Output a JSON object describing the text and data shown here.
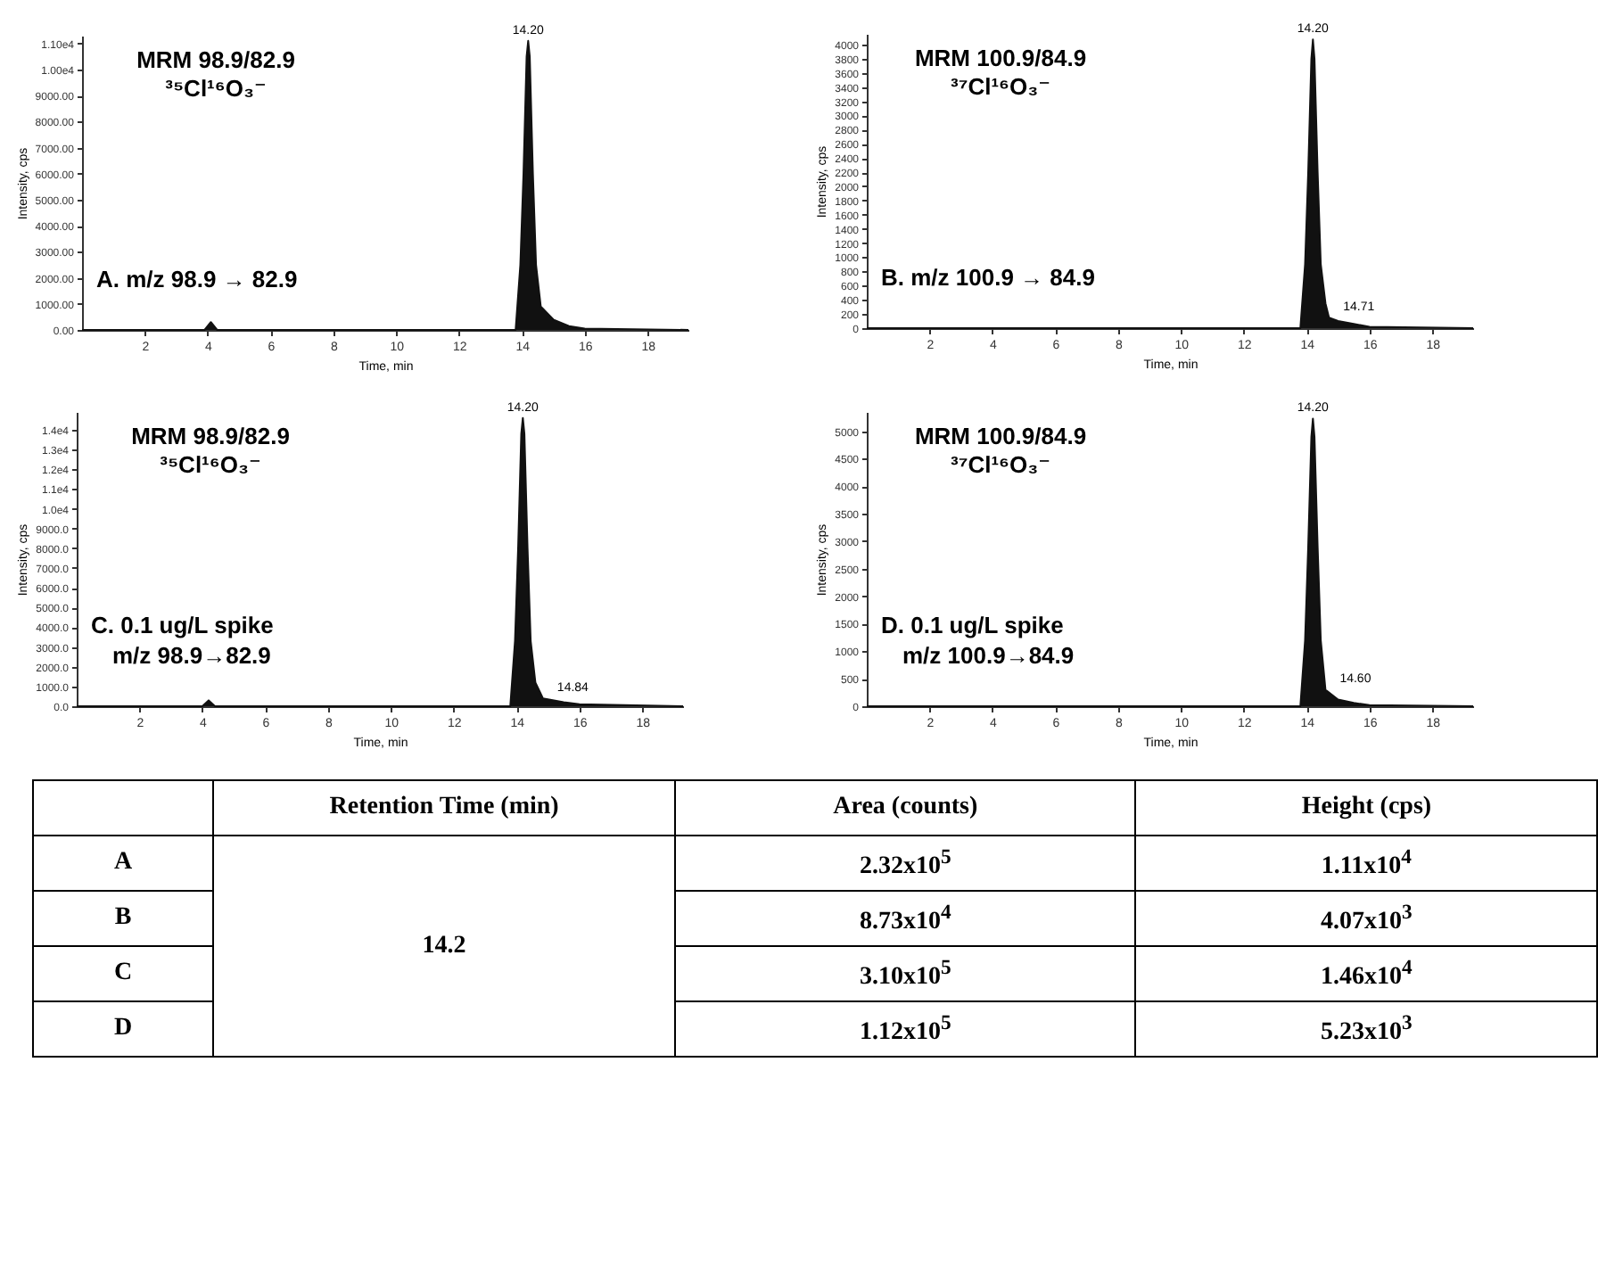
{
  "chart_data": [
    {
      "type": "area",
      "xlabel": "Time, min",
      "ylabel": "Intensity, cps",
      "color": "#111111",
      "xlim": [
        0,
        19.3
      ],
      "xticks": [
        2,
        4,
        6,
        8,
        10,
        12,
        14,
        16,
        18
      ],
      "ylim": [
        0,
        11300
      ],
      "yticks": [
        {
          "value": 0,
          "label": "0.00"
        },
        {
          "value": 1000,
          "label": "1000.00"
        },
        {
          "value": 2000,
          "label": "2000.00"
        },
        {
          "value": 3000,
          "label": "3000.00"
        },
        {
          "value": 4000,
          "label": "4000.00"
        },
        {
          "value": 5000,
          "label": "5000.00"
        },
        {
          "value": 6000,
          "label": "6000.00"
        },
        {
          "value": 7000,
          "label": "7000.00"
        },
        {
          "value": 8000,
          "label": "8000.00"
        },
        {
          "value": 9000,
          "label": "9000.00"
        },
        {
          "value": 10000,
          "label": "1.00e4"
        },
        {
          "value": 11000,
          "label": "1.10e4"
        }
      ],
      "x": [
        0,
        3.9,
        4.1,
        4.3,
        13.8,
        13.95,
        14.05,
        14.15,
        14.2,
        14.25,
        14.35,
        14.45,
        14.6,
        15,
        15.5,
        16,
        19.3
      ],
      "values": [
        0,
        0,
        300,
        0,
        0,
        2500,
        6000,
        10500,
        11100,
        10500,
        6000,
        2500,
        900,
        400,
        150,
        50,
        0
      ],
      "annotations": [
        "MRM 98.9/82.9",
        "³⁵Cl¹⁶O₃⁻",
        "A. m/z 98.9 → 82.9",
        {
          "text": "14.20",
          "x": 14.2,
          "y": 11100
        }
      ]
    },
    {
      "type": "area",
      "xlabel": "Time, min",
      "ylabel": "Intensity, cps",
      "color": "#111111",
      "xlim": [
        0,
        19.3
      ],
      "xticks": [
        2,
        4,
        6,
        8,
        10,
        12,
        14,
        16,
        18
      ],
      "ylim": [
        0,
        4150
      ],
      "yticks": [
        0,
        200,
        400,
        600,
        800,
        1000,
        1200,
        1400,
        1600,
        1800,
        2000,
        2200,
        2400,
        2600,
        2800,
        3000,
        3200,
        3400,
        3600,
        3800,
        4000
      ],
      "x": [
        0,
        13.8,
        13.95,
        14.05,
        14.15,
        14.2,
        14.25,
        14.35,
        14.45,
        14.6,
        14.71,
        15,
        15.5,
        16,
        19.3
      ],
      "values": [
        0,
        0,
        900,
        2200,
        3800,
        4070,
        3800,
        2200,
        900,
        350,
        150,
        100,
        60,
        20,
        0
      ],
      "annotations": [
        "MRM 100.9/84.9",
        "³⁷Cl¹⁶O₃⁻",
        "B. m/z 100.9 → 84.9",
        {
          "text": "14.20",
          "x": 14.2,
          "y": 4070
        },
        {
          "text": "14.71",
          "x": 14.71,
          "y": 150
        }
      ]
    },
    {
      "type": "area",
      "xlabel": "Time, min",
      "ylabel": "Intensity, cps",
      "color": "#111111",
      "xlim": [
        0,
        19.3
      ],
      "xticks": [
        2,
        4,
        6,
        8,
        10,
        12,
        14,
        16,
        18
      ],
      "ylim": [
        0,
        14900
      ],
      "yticks": [
        {
          "value": 0,
          "label": "0.0"
        },
        {
          "value": 1000,
          "label": "1000.0"
        },
        {
          "value": 2000,
          "label": "2000.0"
        },
        {
          "value": 3000,
          "label": "3000.0"
        },
        {
          "value": 4000,
          "label": "4000.0"
        },
        {
          "value": 5000,
          "label": "5000.0"
        },
        {
          "value": 6000,
          "label": "6000.0"
        },
        {
          "value": 7000,
          "label": "7000.0"
        },
        {
          "value": 8000,
          "label": "8000.0"
        },
        {
          "value": 9000,
          "label": "9000.0"
        },
        {
          "value": 10000,
          "label": "1.0e4"
        },
        {
          "value": 11000,
          "label": "1.1e4"
        },
        {
          "value": 12000,
          "label": "1.2e4"
        },
        {
          "value": 13000,
          "label": "1.3e4"
        },
        {
          "value": 14000,
          "label": "1.4e4"
        }
      ],
      "x": [
        0,
        4.0,
        4.2,
        4.4,
        13.8,
        13.95,
        14.05,
        14.15,
        14.2,
        14.25,
        14.35,
        14.45,
        14.6,
        14.84,
        15.5,
        16,
        19.3
      ],
      "values": [
        0,
        0,
        300,
        0,
        0,
        3300,
        8000,
        13800,
        14600,
        13800,
        8000,
        3300,
        1200,
        400,
        200,
        100,
        0
      ],
      "annotations": [
        "MRM 98.9/82.9",
        "³⁵Cl¹⁶O₃⁻",
        "C. 0.1 ug/L spike",
        "m/z 98.9→82.9",
        {
          "text": "14.20",
          "x": 14.2,
          "y": 14600
        },
        {
          "text": "14.84",
          "x": 14.84,
          "y": 400
        }
      ]
    },
    {
      "type": "area",
      "xlabel": "Time, min",
      "ylabel": "Intensity, cps",
      "color": "#111111",
      "xlim": [
        0,
        19.3
      ],
      "xticks": [
        2,
        4,
        6,
        8,
        10,
        12,
        14,
        16,
        18
      ],
      "ylim": [
        0,
        5350
      ],
      "yticks": [
        0,
        500,
        1000,
        1500,
        2000,
        2500,
        3000,
        3500,
        4000,
        4500,
        5000
      ],
      "x": [
        0,
        13.8,
        13.95,
        14.05,
        14.15,
        14.2,
        14.25,
        14.35,
        14.45,
        14.6,
        15,
        15.5,
        16,
        19.3
      ],
      "values": [
        0,
        0,
        1200,
        2900,
        4900,
        5230,
        4900,
        2900,
        1200,
        300,
        120,
        60,
        20,
        0
      ],
      "annotations": [
        "MRM 100.9/84.9",
        "³⁷Cl¹⁶O₃⁻",
        "D. 0.1 ug/L spike",
        "m/z 100.9→84.9",
        {
          "text": "14.20",
          "x": 14.2,
          "y": 5230
        },
        {
          "text": "14.60",
          "x": 14.6,
          "y": 300
        }
      ]
    },
    {
      "type": "other",
      "categories": [
        null,
        "Retention Time (min)",
        "Area (counts)",
        "Height (cps)"
      ],
      "y_categories": [
        "A",
        "B",
        "C",
        "D"
      ],
      "cell_labels": [
        [
          "14.2",
          "2.32x10$^{5}$",
          "1.11x10$^{4}$"
        ],
        [
          null,
          "8.73x10$^{4}$",
          "4.07x10$^{3}$"
        ],
        [
          null,
          "3.10x10$^{5}$",
          "1.46x10$^{4}$"
        ],
        [
          null,
          "1.12x10$^{5}$",
          "5.23x10$^{3}$"
        ]
      ]
    }
  ]
}
